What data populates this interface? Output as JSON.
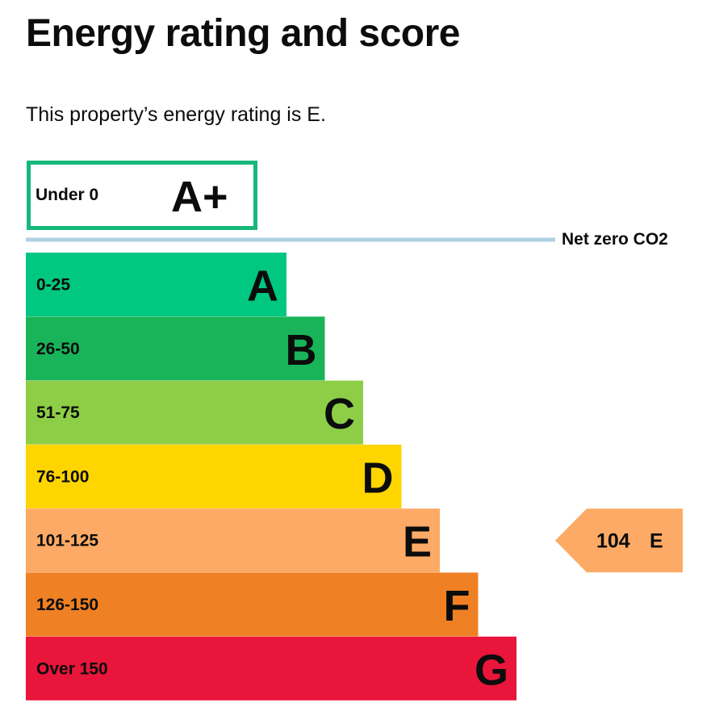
{
  "page": {
    "title": "Energy rating and score",
    "subtitle": "This property’s energy rating is E."
  },
  "chart_data": {
    "type": "bar",
    "aplus": {
      "range": "Under 0",
      "letter": "A+",
      "color": "#17b87c"
    },
    "net_zero_label": "Net zero CO2",
    "net_zero_color": "#aed0e2",
    "bands": [
      {
        "range": "0-25",
        "letter": "A",
        "color": "#00c781"
      },
      {
        "range": "26-50",
        "letter": "B",
        "color": "#19b459"
      },
      {
        "range": "51-75",
        "letter": "C",
        "color": "#8dce46"
      },
      {
        "range": "76-100",
        "letter": "D",
        "color": "#ffd500"
      },
      {
        "range": "101-125",
        "letter": "E",
        "color": "#fcaa65"
      },
      {
        "range": "126-150",
        "letter": "F",
        "color": "#ef8023"
      },
      {
        "range": "Over 150",
        "letter": "G",
        "color": "#e9153b"
      }
    ],
    "current": {
      "score": "104",
      "letter": "E",
      "band_index": 4,
      "color": "#fcaa65"
    }
  }
}
